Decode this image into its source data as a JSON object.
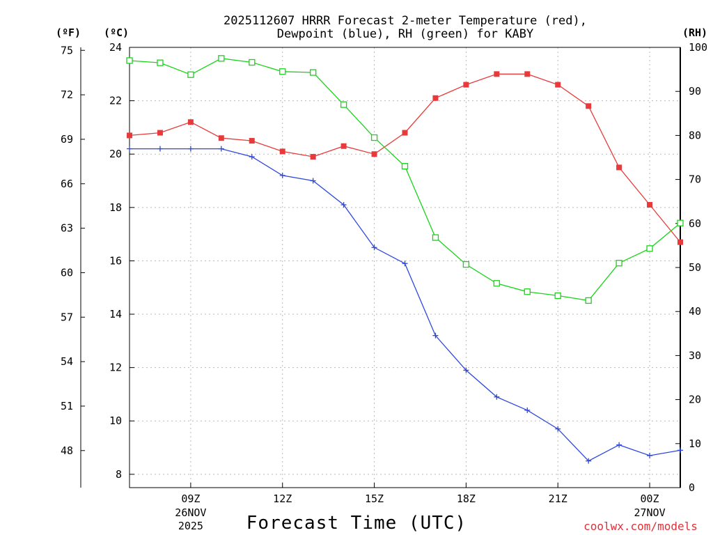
{
  "chart_data": {
    "type": "line",
    "title_line1": "2025112607 HRRR Forecast 2-meter Temperature (red),",
    "title_line2": "Dewpoint (blue), RH (green) for KABY",
    "units": {
      "fahrenheit": "(ºF)",
      "celsius": "(ºC)",
      "rh": "(RH)"
    },
    "xlabel": "Forecast Time (UTC)",
    "credit": "coolwx.com/models",
    "x_hours": [
      7,
      8,
      9,
      10,
      11,
      12,
      13,
      14,
      15,
      16,
      17,
      18,
      19,
      20,
      21,
      22,
      23,
      24,
      25
    ],
    "x_range": [
      7,
      25
    ],
    "x_ticks": [
      {
        "hour": 9,
        "label": "09Z",
        "sub1": "26NOV",
        "sub2": "2025"
      },
      {
        "hour": 12,
        "label": "12Z",
        "sub1": "",
        "sub2": ""
      },
      {
        "hour": 15,
        "label": "15Z",
        "sub1": "",
        "sub2": ""
      },
      {
        "hour": 18,
        "label": "18Z",
        "sub1": "",
        "sub2": ""
      },
      {
        "hour": 21,
        "label": "21Z",
        "sub1": "",
        "sub2": ""
      },
      {
        "hour": 24,
        "label": "00Z",
        "sub1": "27NOV",
        "sub2": ""
      }
    ],
    "celsius_axis": {
      "range": [
        7.5,
        24
      ],
      "ticks": [
        8,
        10,
        12,
        14,
        16,
        18,
        20,
        22,
        24
      ]
    },
    "fahrenheit_axis": {
      "ticks": [
        48,
        51,
        54,
        57,
        60,
        63,
        66,
        69,
        72,
        75
      ]
    },
    "rh_axis": {
      "range": [
        0,
        100
      ],
      "ticks": [
        0,
        10,
        20,
        30,
        40,
        50,
        60,
        70,
        80,
        90,
        100
      ]
    },
    "series": [
      {
        "name": "Temperature (°C)",
        "color": "#e83a3a",
        "marker": "filled-square",
        "axis": "celsius",
        "values": [
          20.7,
          20.8,
          21.2,
          20.6,
          20.5,
          20.1,
          19.9,
          20.3,
          20.0,
          20.8,
          22.1,
          22.6,
          23.0,
          23.0,
          22.6,
          21.8,
          19.5,
          18.1,
          16.7
        ]
      },
      {
        "name": "Dewpoint (°C)",
        "color": "#2c46e0",
        "marker": "plus",
        "axis": "celsius",
        "values": [
          20.2,
          20.2,
          20.2,
          20.2,
          19.9,
          19.2,
          19.0,
          18.1,
          16.5,
          15.9,
          13.2,
          11.9,
          10.9,
          10.4,
          9.7,
          8.5,
          9.1,
          8.7,
          8.9
        ]
      },
      {
        "name": "RH (%)",
        "color": "#18d418",
        "marker": "open-square",
        "axis": "rh",
        "values": [
          97,
          96.5,
          93.8,
          97.5,
          96.6,
          94.5,
          94.3,
          87,
          79.5,
          73,
          56.8,
          50.7,
          46.4,
          44.5,
          43.6,
          42.5,
          51,
          54.3,
          60.1
        ]
      }
    ]
  }
}
